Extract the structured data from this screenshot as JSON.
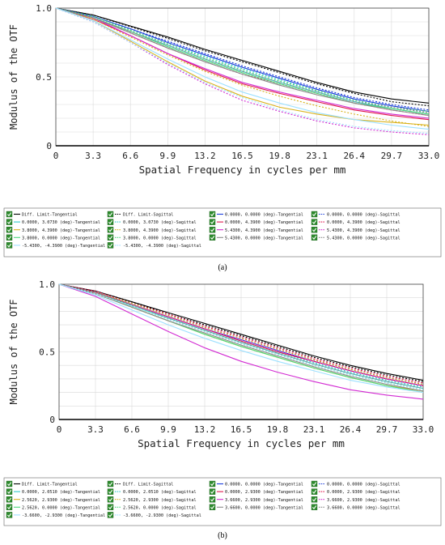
{
  "chart_data": [
    {
      "type": "line",
      "panel": "(a)",
      "ylabel": "Modulus of the OTF",
      "xlabel": "Spatial Frequency in cycles per mm",
      "xlim": [
        0,
        33
      ],
      "ylim": [
        0,
        1
      ],
      "x_ticks": [
        "0",
        "3.3",
        "6.6",
        "9.9",
        "13.2",
        "16.5",
        "19.8",
        "23.1",
        "26.4",
        "29.7",
        "33.0"
      ],
      "y_ticks": [
        "0",
        "0.5",
        "1.0"
      ],
      "grid": true,
      "x": [
        0,
        3.3,
        6.6,
        9.9,
        13.2,
        16.5,
        19.8,
        23.1,
        26.4,
        29.7,
        33
      ],
      "series": [
        {
          "name": "Diff. Limit-Tangential",
          "color": "#000000",
          "dash": false,
          "values": [
            1.0,
            0.95,
            0.87,
            0.79,
            0.7,
            0.62,
            0.54,
            0.46,
            0.39,
            0.34,
            0.31
          ]
        },
        {
          "name": "Diff. Limit-Sagittal",
          "color": "#000000",
          "dash": true,
          "values": [
            1.0,
            0.95,
            0.865,
            0.78,
            0.69,
            0.61,
            0.53,
            0.45,
            0.38,
            0.32,
            0.29
          ]
        },
        {
          "name": "0.0000, 0.0000 (deg)-Tangential",
          "color": "#1a3cdb",
          "dash": false,
          "values": [
            1.0,
            0.94,
            0.85,
            0.75,
            0.66,
            0.57,
            0.49,
            0.41,
            0.34,
            0.29,
            0.25
          ]
        },
        {
          "name": "0.0000, 0.0000 (deg)-Sagittal",
          "color": "#1a3cdb",
          "dash": true,
          "values": [
            1.0,
            0.94,
            0.85,
            0.76,
            0.67,
            0.58,
            0.5,
            0.42,
            0.35,
            0.3,
            0.26
          ]
        },
        {
          "name": "0.0000, 3.0730 (deg)-Tangential",
          "color": "#2ec9c9",
          "dash": false,
          "values": [
            1.0,
            0.93,
            0.83,
            0.73,
            0.63,
            0.54,
            0.46,
            0.39,
            0.32,
            0.27,
            0.23
          ]
        },
        {
          "name": "0.0000, 3.0730 (deg)-Sagittal",
          "color": "#2ec9c9",
          "dash": true,
          "values": [
            1.0,
            0.94,
            0.84,
            0.74,
            0.65,
            0.56,
            0.48,
            0.4,
            0.33,
            0.28,
            0.24
          ]
        },
        {
          "name": "0.0000, 4.3900 (deg)-Tangential",
          "color": "#e0154d",
          "dash": false,
          "values": [
            1.0,
            0.92,
            0.8,
            0.67,
            0.55,
            0.45,
            0.38,
            0.32,
            0.26,
            0.22,
            0.19
          ]
        },
        {
          "name": "0.0000, 4.3900 (deg)-Sagittal",
          "color": "#e0154d",
          "dash": true,
          "values": [
            1.0,
            0.93,
            0.82,
            0.71,
            0.61,
            0.52,
            0.45,
            0.38,
            0.31,
            0.26,
            0.22
          ]
        },
        {
          "name": "3.8000, 4.3900 (deg)-Tangential",
          "color": "#d9b21c",
          "dash": false,
          "values": [
            1.0,
            0.91,
            0.76,
            0.61,
            0.47,
            0.36,
            0.28,
            0.23,
            0.19,
            0.17,
            0.15
          ]
        },
        {
          "name": "3.8000, 4.3900 (deg)-Sagittal",
          "color": "#d9b21c",
          "dash": true,
          "values": [
            1.0,
            0.92,
            0.79,
            0.66,
            0.54,
            0.44,
            0.36,
            0.29,
            0.23,
            0.18,
            0.14
          ]
        },
        {
          "name": "5.4300, 4.3900 (deg)-Tangential",
          "color": "#d22ad2",
          "dash": false,
          "values": [
            1.0,
            0.93,
            0.8,
            0.67,
            0.56,
            0.46,
            0.39,
            0.33,
            0.27,
            0.23,
            0.2
          ]
        },
        {
          "name": "5.4300, 4.3900 (deg)-Sagittal",
          "color": "#d22ad2",
          "dash": true,
          "values": [
            1.0,
            0.9,
            0.75,
            0.59,
            0.45,
            0.33,
            0.25,
            0.18,
            0.13,
            0.1,
            0.08
          ]
        },
        {
          "name": "3.8000, 0.0000 (deg)-Tangential",
          "color": "#4dd97a",
          "dash": false,
          "values": [
            1.0,
            0.93,
            0.83,
            0.72,
            0.62,
            0.53,
            0.45,
            0.38,
            0.31,
            0.27,
            0.23
          ]
        },
        {
          "name": "3.8000, 0.0000 (deg)-Sagittal",
          "color": "#4dd97a",
          "dash": true,
          "values": [
            1.0,
            0.94,
            0.84,
            0.74,
            0.64,
            0.55,
            0.47,
            0.4,
            0.33,
            0.28,
            0.25
          ]
        },
        {
          "name": "5.4300, 0.0000 (deg)-Tangential",
          "color": "#8a8a8a",
          "dash": false,
          "values": [
            1.0,
            0.93,
            0.82,
            0.71,
            0.61,
            0.52,
            0.44,
            0.37,
            0.31,
            0.26,
            0.22
          ]
        },
        {
          "name": "5.4300, 0.0000 (deg)-Sagittal",
          "color": "#8a8a8a",
          "dash": true,
          "values": [
            1.0,
            0.93,
            0.83,
            0.73,
            0.63,
            0.54,
            0.46,
            0.39,
            0.32,
            0.28,
            0.24
          ]
        },
        {
          "name": "-5.4300, -4.3900 (deg)-Tangential",
          "color": "#9de0ff",
          "dash": false,
          "values": [
            1.0,
            0.91,
            0.77,
            0.63,
            0.5,
            0.39,
            0.31,
            0.24,
            0.19,
            0.15,
            0.12
          ]
        },
        {
          "name": "-5.4300, -4.3900 (deg)-Sagittal",
          "color": "#9de0ff",
          "dash": true,
          "values": [
            1.0,
            0.9,
            0.75,
            0.6,
            0.46,
            0.35,
            0.26,
            0.19,
            0.14,
            0.11,
            0.09
          ]
        }
      ]
    },
    {
      "type": "line",
      "panel": "(b)",
      "ylabel": "Modulus of the OTF",
      "xlabel": "Spatial Frequency in cycles per mm",
      "xlim": [
        0,
        33
      ],
      "ylim": [
        0,
        1
      ],
      "x_ticks": [
        "0",
        "3.3",
        "6.6",
        "9.9",
        "13.2",
        "16.5",
        "19.8",
        "23.1",
        "26.4",
        "29.7",
        "33.0"
      ],
      "y_ticks": [
        "0",
        "0.5",
        "1.0"
      ],
      "grid": true,
      "x": [
        0,
        3.3,
        6.6,
        9.9,
        13.2,
        16.5,
        19.8,
        23.1,
        26.4,
        29.7,
        33
      ],
      "series": [
        {
          "name": "Diff. Limit-Tangential",
          "color": "#000000",
          "dash": false,
          "values": [
            1.0,
            0.95,
            0.87,
            0.79,
            0.71,
            0.63,
            0.55,
            0.47,
            0.4,
            0.34,
            0.29
          ]
        },
        {
          "name": "Diff. Limit-Sagittal",
          "color": "#000000",
          "dash": true,
          "values": [
            1.0,
            0.95,
            0.87,
            0.78,
            0.7,
            0.62,
            0.54,
            0.46,
            0.39,
            0.33,
            0.28
          ]
        },
        {
          "name": "0.0000, 0.0000 (deg)-Tangential",
          "color": "#1a3cdb",
          "dash": false,
          "values": [
            1.0,
            0.94,
            0.85,
            0.76,
            0.67,
            0.59,
            0.51,
            0.43,
            0.36,
            0.3,
            0.25
          ]
        },
        {
          "name": "0.0000, 0.0000 (deg)-Sagittal",
          "color": "#1a3cdb",
          "dash": true,
          "values": [
            1.0,
            0.94,
            0.86,
            0.77,
            0.68,
            0.6,
            0.52,
            0.44,
            0.37,
            0.31,
            0.26
          ]
        },
        {
          "name": "0.0000, 2.0510 (deg)-Tangential",
          "color": "#2ec9c9",
          "dash": false,
          "values": [
            1.0,
            0.94,
            0.84,
            0.75,
            0.66,
            0.57,
            0.49,
            0.41,
            0.34,
            0.28,
            0.23
          ]
        },
        {
          "name": "0.0000, 2.0510 (deg)-Sagittal",
          "color": "#2ec9c9",
          "dash": true,
          "values": [
            1.0,
            0.94,
            0.85,
            0.76,
            0.67,
            0.58,
            0.5,
            0.42,
            0.35,
            0.29,
            0.24
          ]
        },
        {
          "name": "0.0000, 2.9300 (deg)-Tangential",
          "color": "#e0154d",
          "dash": false,
          "values": [
            1.0,
            0.94,
            0.85,
            0.76,
            0.67,
            0.58,
            0.5,
            0.43,
            0.36,
            0.3,
            0.25
          ]
        },
        {
          "name": "0.0000, 2.9300 (deg)-Sagittal",
          "color": "#e0154d",
          "dash": true,
          "values": [
            1.0,
            0.95,
            0.86,
            0.78,
            0.69,
            0.61,
            0.53,
            0.45,
            0.38,
            0.32,
            0.27
          ]
        },
        {
          "name": "2.5620, 2.9300 (deg)-Tangential",
          "color": "#d9b21c",
          "dash": false,
          "values": [
            1.0,
            0.93,
            0.83,
            0.73,
            0.63,
            0.54,
            0.46,
            0.38,
            0.31,
            0.25,
            0.21
          ]
        },
        {
          "name": "2.5620, 2.9300 (deg)-Sagittal",
          "color": "#d9b21c",
          "dash": true,
          "values": [
            1.0,
            0.94,
            0.86,
            0.77,
            0.68,
            0.6,
            0.52,
            0.44,
            0.37,
            0.31,
            0.26
          ]
        },
        {
          "name": "3.6600, 2.9300 (deg)-Tangential",
          "color": "#d22ad2",
          "dash": false,
          "values": [
            1.0,
            0.91,
            0.78,
            0.65,
            0.53,
            0.43,
            0.35,
            0.28,
            0.22,
            0.18,
            0.15
          ]
        },
        {
          "name": "3.6600, 2.9300 (deg)-Sagittal",
          "color": "#d22ad2",
          "dash": true,
          "values": [
            1.0,
            0.94,
            0.85,
            0.76,
            0.67,
            0.59,
            0.51,
            0.43,
            0.36,
            0.3,
            0.25
          ]
        },
        {
          "name": "2.5620, 0.0000 (deg)-Tangential",
          "color": "#4dd97a",
          "dash": false,
          "values": [
            1.0,
            0.93,
            0.83,
            0.73,
            0.63,
            0.54,
            0.46,
            0.38,
            0.31,
            0.25,
            0.2
          ]
        },
        {
          "name": "2.5620, 0.0000 (deg)-Sagittal",
          "color": "#4dd97a",
          "dash": true,
          "values": [
            1.0,
            0.94,
            0.84,
            0.74,
            0.65,
            0.56,
            0.48,
            0.4,
            0.33,
            0.27,
            0.22
          ]
        },
        {
          "name": "3.6600, 0.0000 (deg)-Tangential",
          "color": "#8a8a8a",
          "dash": false,
          "values": [
            1.0,
            0.93,
            0.83,
            0.73,
            0.64,
            0.55,
            0.47,
            0.39,
            0.32,
            0.26,
            0.21
          ]
        },
        {
          "name": "3.6600, 0.0000 (deg)-Sagittal",
          "color": "#8a8a8a",
          "dash": true,
          "values": [
            1.0,
            0.94,
            0.85,
            0.75,
            0.66,
            0.57,
            0.49,
            0.41,
            0.34,
            0.28,
            0.23
          ]
        },
        {
          "name": "-3.6600, -2.9300 (deg)-Tangential",
          "color": "#9de0ff",
          "dash": false,
          "values": [
            1.0,
            0.92,
            0.81,
            0.7,
            0.6,
            0.51,
            0.43,
            0.36,
            0.29,
            0.24,
            0.2
          ]
        },
        {
          "name": "-3.6600, -2.9300 (deg)-Sagittal",
          "color": "#9de0ff",
          "dash": true,
          "values": [
            1.0,
            0.93,
            0.84,
            0.74,
            0.65,
            0.56,
            0.48,
            0.4,
            0.33,
            0.27,
            0.22
          ]
        }
      ]
    }
  ]
}
